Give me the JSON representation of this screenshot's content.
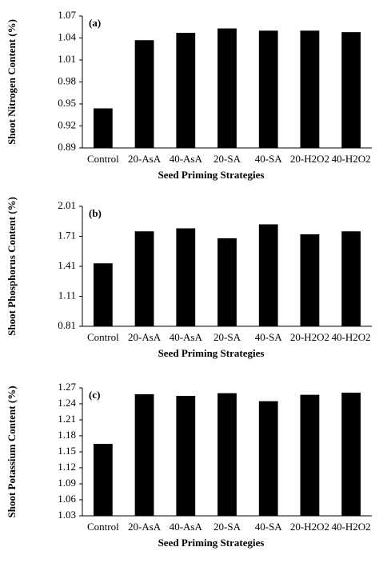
{
  "chart_data": [
    {
      "type": "bar",
      "panel_label": "(a)",
      "ylabel": "Shoot Nitrogen Content (%)",
      "xlabel": "Seed Priming Strategies",
      "categories": [
        "Control",
        "20-AsA",
        "40-AsA",
        "20-SA",
        "40-SA",
        "20-H2O2",
        "40-H2O2"
      ],
      "values": [
        0.944,
        1.037,
        1.047,
        1.053,
        1.05,
        1.05,
        1.048
      ],
      "color": "#000000",
      "ylim": [
        0.89,
        1.07
      ],
      "yticks": [
        0.89,
        0.92,
        0.95,
        0.98,
        1.01,
        1.04,
        1.07
      ],
      "grid": false
    },
    {
      "type": "bar",
      "panel_label": "(b)",
      "ylabel": "Shoot Phosphorus Content (%)",
      "xlabel": "Seed Priming Strategies",
      "categories": [
        "Control",
        "20-AsA",
        "40-AsA",
        "20-SA",
        "40-SA",
        "20-H2O2",
        "40-H2O2"
      ],
      "values": [
        1.44,
        1.76,
        1.79,
        1.69,
        1.83,
        1.73,
        1.76
      ],
      "color": "#000000",
      "ylim": [
        0.81,
        2.01
      ],
      "yticks": [
        0.81,
        1.11,
        1.41,
        1.71,
        2.01
      ],
      "grid": false
    },
    {
      "type": "bar",
      "panel_label": "(c)",
      "ylabel": "Shoot Potassium Content (%)",
      "xlabel": "Seed Priming Strategies",
      "categories": [
        "Control",
        "20-AsA",
        "40-AsA",
        "20-SA",
        "40-SA",
        "20-H2O2",
        "40-H2O2"
      ],
      "values": [
        1.165,
        1.258,
        1.255,
        1.26,
        1.245,
        1.257,
        1.261
      ],
      "color": "#000000",
      "ylim": [
        1.03,
        1.27
      ],
      "yticks": [
        1.03,
        1.06,
        1.09,
        1.12,
        1.15,
        1.18,
        1.21,
        1.24,
        1.27
      ],
      "grid": false
    }
  ]
}
